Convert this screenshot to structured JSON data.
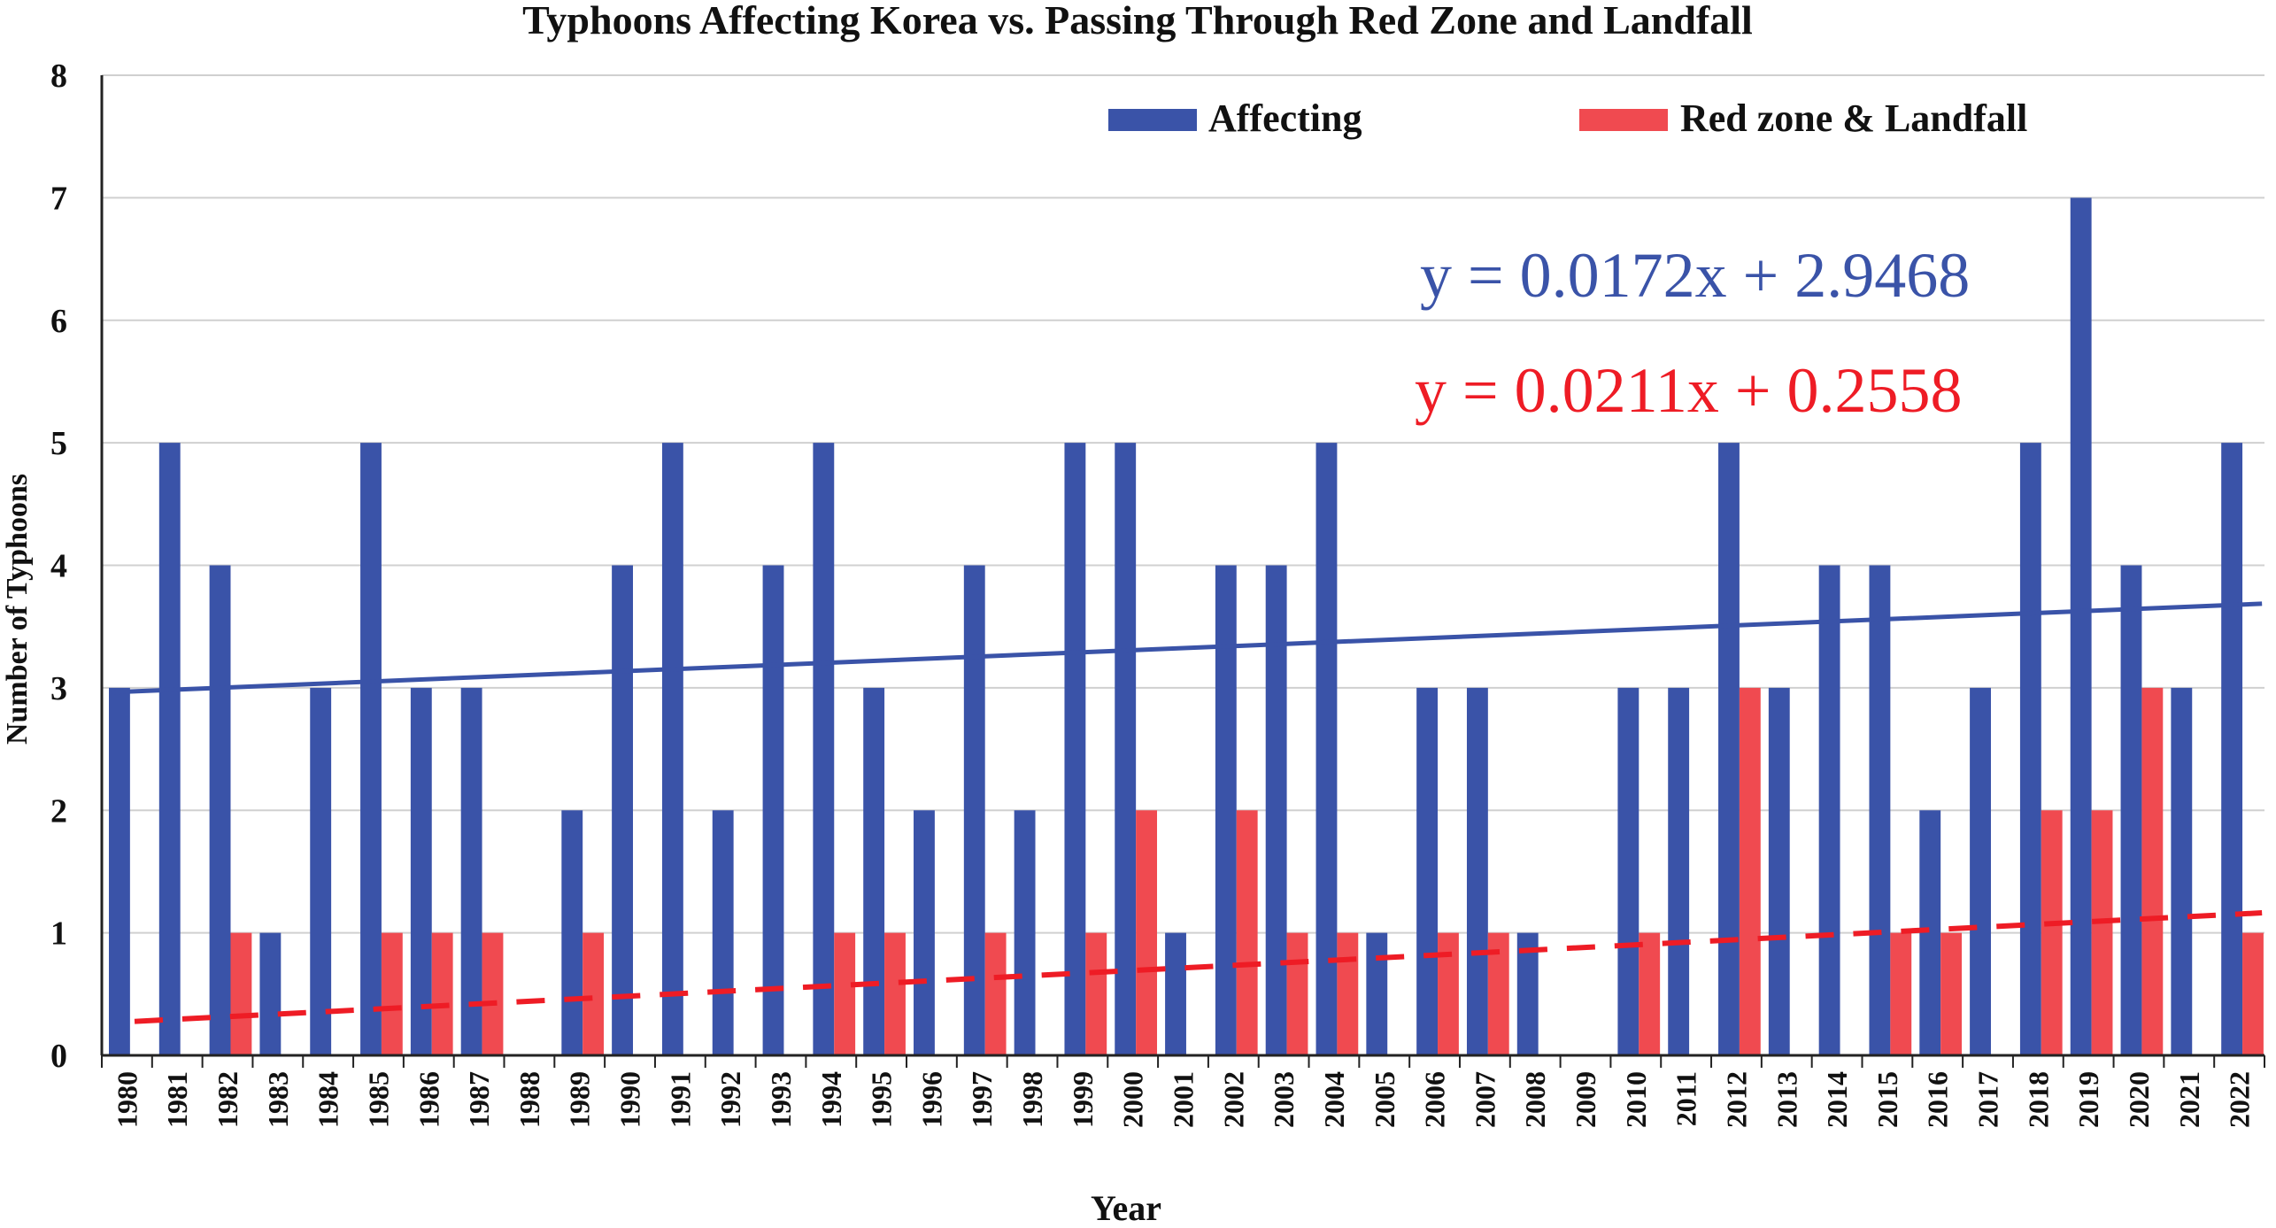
{
  "chart_data": {
    "type": "bar",
    "title": "Typhoons Affecting Korea vs. Passing Through Red Zone and Landfall",
    "xlabel": "Year",
    "ylabel": "Number of Typhoons",
    "ylim": [
      0,
      8
    ],
    "yticks": [
      "0",
      "1",
      "2",
      "3",
      "4",
      "5",
      "6",
      "7",
      "8"
    ],
    "grid": true,
    "legend_position": "top-right",
    "categories": [
      "1980",
      "1981",
      "1982",
      "1983",
      "1984",
      "1985",
      "1986",
      "1987",
      "1988",
      "1989",
      "1990",
      "1991",
      "1992",
      "1993",
      "1994",
      "1995",
      "1996",
      "1997",
      "1998",
      "1999",
      "2000",
      "2001",
      "2002",
      "2003",
      "2004",
      "2005",
      "2006",
      "2007",
      "2008",
      "2009",
      "2010",
      "2011",
      "2012",
      "2013",
      "2014",
      "2015",
      "2016",
      "2017",
      "2018",
      "2019",
      "2020",
      "2021",
      "2022"
    ],
    "series": [
      {
        "name": "Affecting",
        "color": "#3a53a8",
        "values": [
          3,
          5,
          4,
          1,
          3,
          5,
          3,
          3,
          0,
          2,
          4,
          5,
          2,
          4,
          5,
          3,
          2,
          4,
          2,
          5,
          5,
          1,
          4,
          4,
          5,
          1,
          3,
          3,
          1,
          0,
          3,
          3,
          5,
          3,
          4,
          4,
          2,
          3,
          5,
          7,
          4,
          3,
          5
        ],
        "trendline": {
          "equation": "y = 0.0172x + 2.9468",
          "slope": 0.0172,
          "intercept": 2.9468,
          "style": "solid",
          "color": "#3a53a8"
        }
      },
      {
        "name": "Red zone & Landfall",
        "color": "#f04a50",
        "values": [
          0,
          0,
          1,
          0,
          0,
          1,
          1,
          1,
          0,
          1,
          0,
          0,
          0,
          0,
          1,
          1,
          0,
          1,
          0,
          1,
          2,
          0,
          2,
          1,
          1,
          0,
          1,
          1,
          0,
          0,
          1,
          0,
          3,
          0,
          0,
          1,
          1,
          0,
          2,
          2,
          3,
          0,
          1
        ],
        "trendline": {
          "equation": "y = 0.0211x + 0.2558",
          "slope": 0.0211,
          "intercept": 0.2558,
          "style": "dashed",
          "color": "#ee1c25"
        }
      }
    ]
  }
}
